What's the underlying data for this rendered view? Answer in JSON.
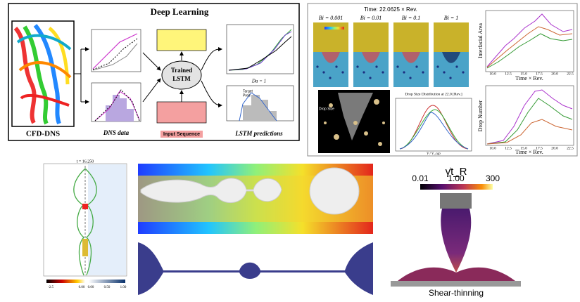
{
  "deep_learning": {
    "title": "Deep Learning",
    "cfd_label": "CFD-DNS",
    "dns_label": "DNS data",
    "lstm": [
      "Trained",
      "LSTM"
    ],
    "prediction_label": "LSTM predictions",
    "input_label": "Input Sequence",
    "da": "Da = 1",
    "legend": [
      "Target",
      "Pred"
    ]
  },
  "simulation": {
    "time": "Time: 22.0625 × Rev.",
    "bi": [
      "Bi = 0.001",
      "Bi = 0.01",
      "Bi = 0.1",
      "Bi = 1"
    ],
    "area_ylabel": "Interfacial Area",
    "number_ylabel": "Drop Number",
    "xlabel": "Time × Rev.",
    "xticks": [
      "10.0",
      "12.5",
      "15.0",
      "17.5",
      "20.0",
      "22.5"
    ],
    "dsd_title": "Drop Size Distribution at 22.0 [Rev.]",
    "dsd_xlabel": "V / V_cap",
    "drop_size": "Drop Size"
  },
  "thread": {
    "time": "t = 16.250",
    "cbar1": [
      "-2.5",
      "0.00"
    ],
    "cbar2": [
      "0.00",
      "0.50",
      "1.00"
    ]
  },
  "shear": {
    "title": "γ̇t_R",
    "ticks": [
      "0.01",
      "1.00",
      "300"
    ],
    "caption": "Shear-thinning"
  }
}
